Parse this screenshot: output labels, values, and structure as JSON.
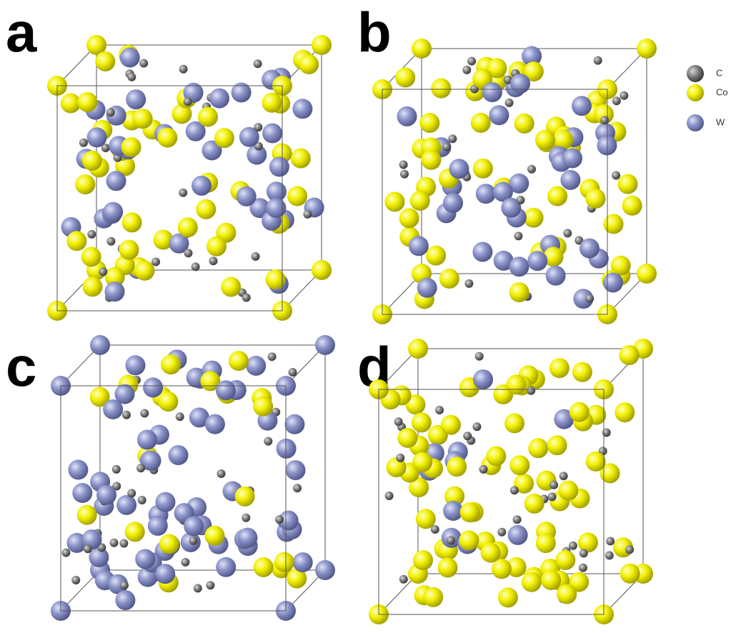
{
  "panels": [
    {
      "label": "a"
    },
    {
      "label": "b"
    },
    {
      "label": "c"
    },
    {
      "label": "d"
    }
  ],
  "legend": [
    {
      "label": "C"
    },
    {
      "label": "Co"
    },
    {
      "label": "W"
    }
  ]
}
